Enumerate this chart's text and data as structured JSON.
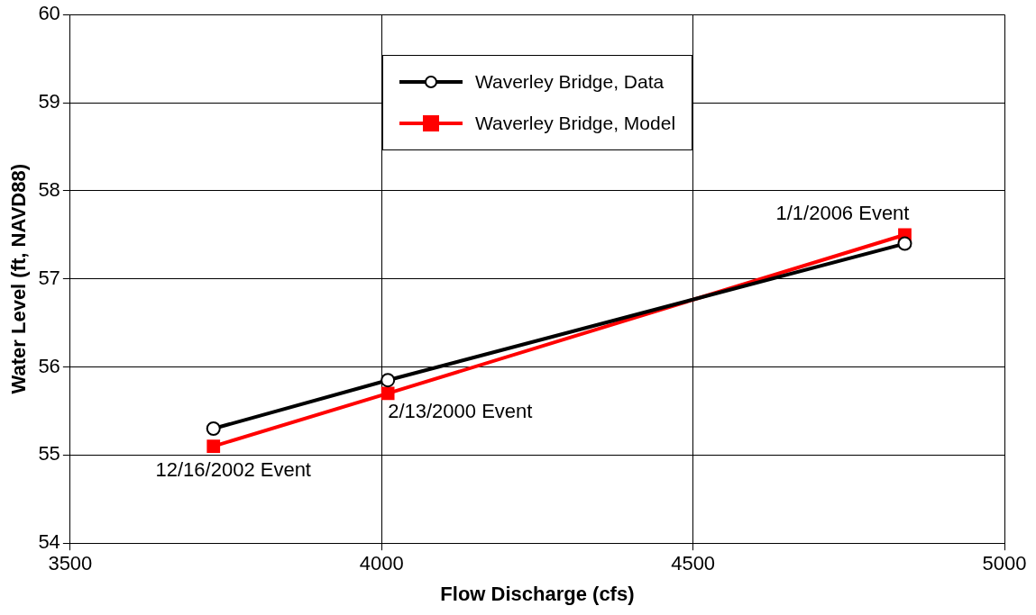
{
  "chart_data": {
    "type": "line",
    "xlabel": "Flow Discharge (cfs)",
    "ylabel": "Water Level (ft, NAVD88)",
    "xlim": [
      3500,
      5000
    ],
    "xticks": [
      3500,
      4000,
      4500,
      5000
    ],
    "ylim": [
      54,
      60
    ],
    "yticks": [
      54,
      55,
      56,
      57,
      58,
      59,
      60
    ],
    "grid": true,
    "legend": "top",
    "series": [
      {
        "name": "Waverley Bridge, Data",
        "color": "#000000",
        "marker": "circle",
        "x": [
          3730,
          4010,
          4840
        ],
        "values": [
          55.3,
          55.85,
          57.4
        ]
      },
      {
        "name": "Waverley Bridge, Model",
        "color": "#ff0000",
        "marker": "square",
        "x": [
          3730,
          4010,
          4840
        ],
        "values": [
          55.1,
          55.7,
          57.5
        ]
      }
    ],
    "annotations": [
      {
        "text": "12/16/2002 Event",
        "x": 3730,
        "y": 55.1
      },
      {
        "text": "2/13/2000 Event",
        "x": 4010,
        "y": 55.7
      },
      {
        "text": "1/1/2006 Event",
        "x": 4840,
        "y": 57.5
      }
    ]
  }
}
